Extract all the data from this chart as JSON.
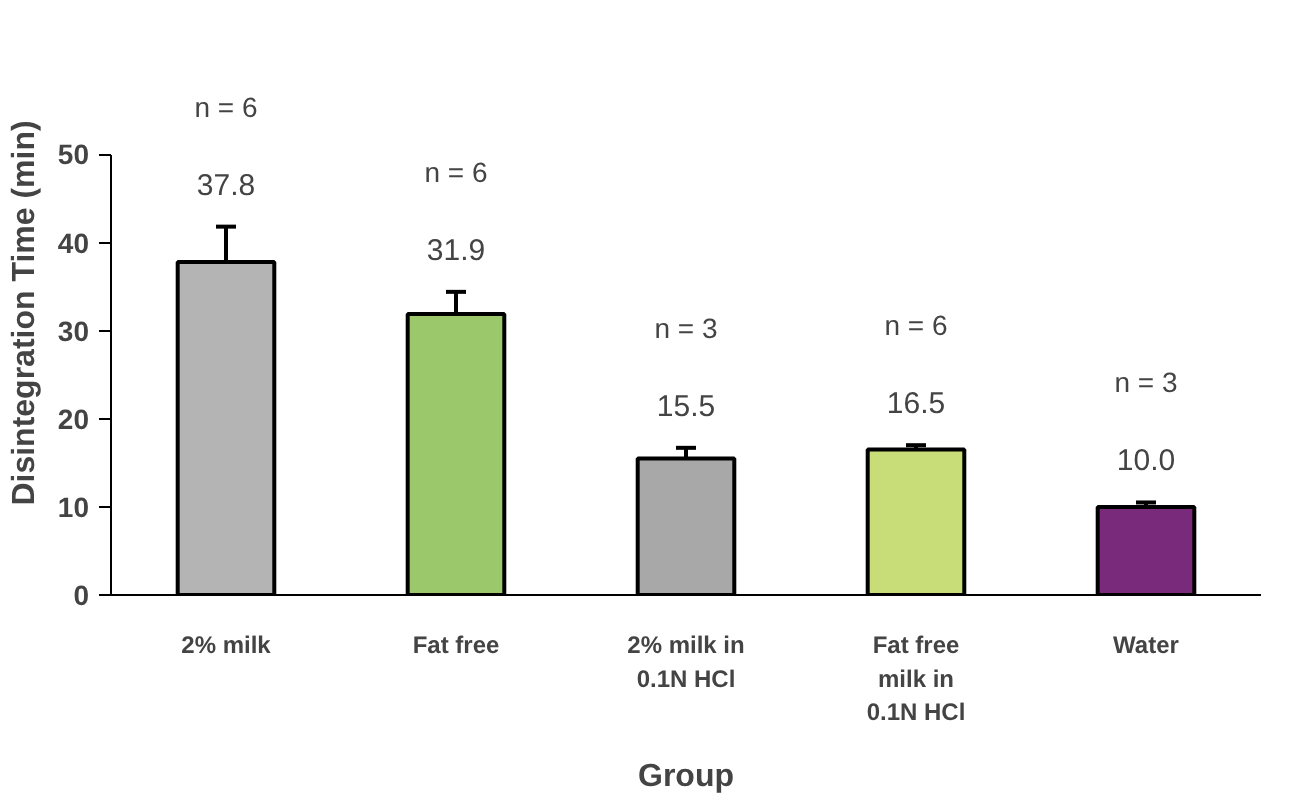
{
  "chart_data": {
    "type": "bar",
    "xlabel": "Group",
    "ylabel": "Disintegration Time (min)",
    "categories": [
      "2% milk",
      "Fat free",
      "2% milk in 0.1N HCl",
      "Fat free milk in 0.1N HCl",
      "Water"
    ],
    "values": [
      37.8,
      31.9,
      15.5,
      16.5,
      10.0
    ],
    "colors": [
      "#b4b4b4",
      "#9cc86c",
      "#a8a8a8",
      "#c8dc78",
      "#7a2a7a"
    ],
    "errors": [
      4.0,
      2.5,
      1.2,
      0.5,
      0.5
    ],
    "value_labels": [
      "37.8",
      "31.9",
      "15.5",
      "16.5",
      "10.0"
    ],
    "ylim": [
      0,
      50
    ],
    "yticks": [
      0,
      10,
      20,
      30,
      40,
      50
    ],
    "grid": false,
    "annotations": [
      "n = 6",
      "n = 6",
      "n = 3",
      "n = 6",
      "n = 3"
    ]
  }
}
